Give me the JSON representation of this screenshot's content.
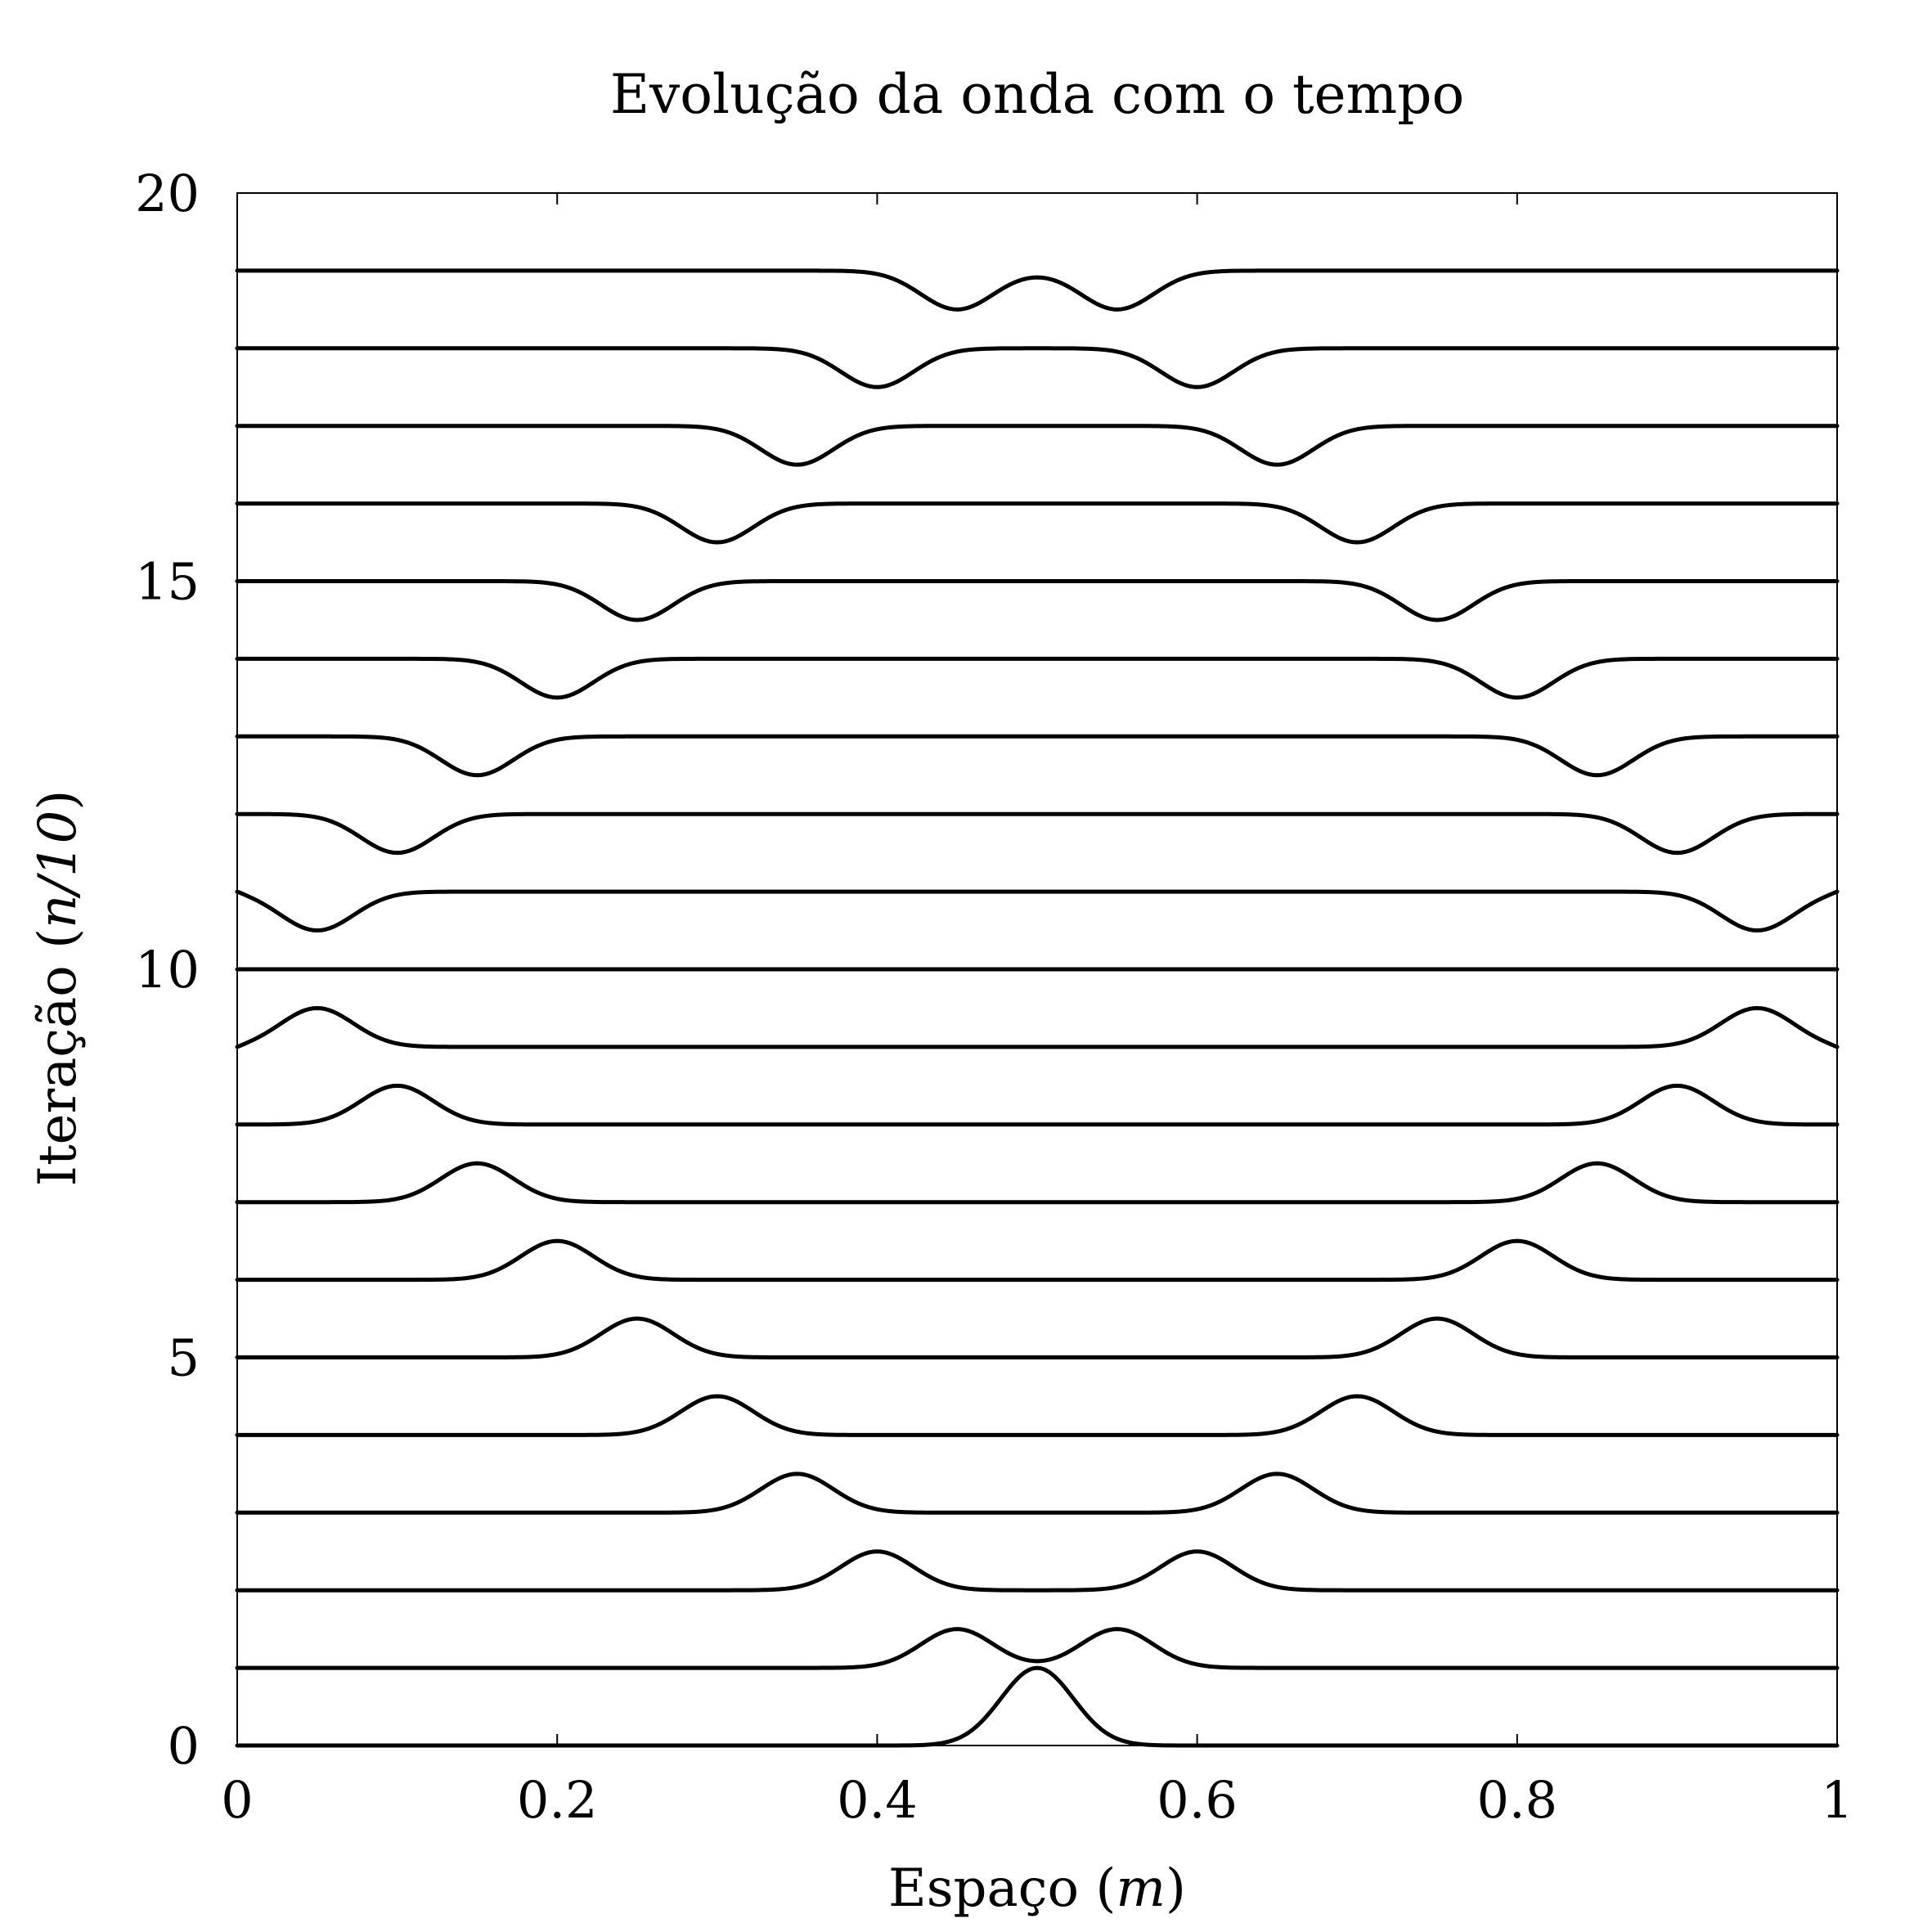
{
  "chart_data": {
    "type": "line",
    "title": "Evolução da onda com o tempo",
    "xlabel": {
      "text": "Espaço",
      "unit": "m"
    },
    "ylabel": {
      "text": "Iteração",
      "unit": "n/10"
    },
    "xlim": [
      0,
      1
    ],
    "ylim": [
      0,
      20
    ],
    "xticks": [
      {
        "value": 0,
        "label": "0"
      },
      {
        "value": 0.2,
        "label": "0.2"
      },
      {
        "value": 0.4,
        "label": "0.4"
      },
      {
        "value": 0.6,
        "label": "0.6"
      },
      {
        "value": 0.8,
        "label": "0.8"
      },
      {
        "value": 1,
        "label": "1"
      }
    ],
    "yticks": [
      {
        "value": 0,
        "label": "0"
      },
      {
        "value": 5,
        "label": "5"
      },
      {
        "value": 10,
        "label": "10"
      },
      {
        "value": 15,
        "label": "15"
      },
      {
        "value": 20,
        "label": "20"
      }
    ],
    "grid": false,
    "line_color": "#000000",
    "wave": {
      "center": 0.5,
      "speed_per_iteration": 0.05,
      "pulse_width": 0.032,
      "peak_offset": 1,
      "domain": [
        0,
        1
      ],
      "boundary": "fixed (reflects with inversion)"
    },
    "iterations": [
      0,
      1,
      2,
      3,
      4,
      5,
      6,
      7,
      8,
      9,
      10,
      11,
      12,
      13,
      14,
      15,
      16,
      17,
      18,
      19
    ]
  }
}
